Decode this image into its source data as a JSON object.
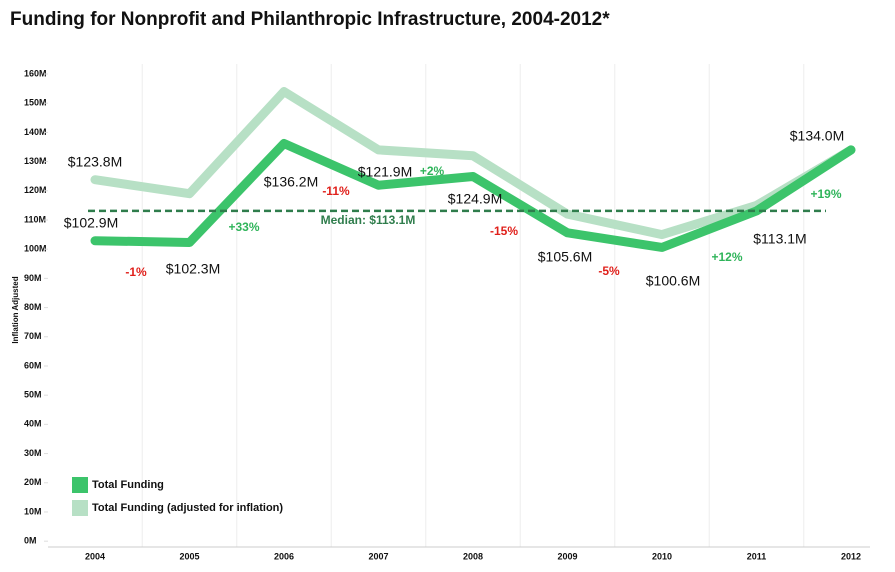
{
  "chart_data": {
    "type": "line",
    "title": "Funding for Nonprofit and Philanthropic Infrastructure, 2004-2012*",
    "y_label": "Inflation Adjusted",
    "categories": [
      "2004",
      "2005",
      "2006",
      "2007",
      "2008",
      "2009",
      "2010",
      "2011",
      "2012"
    ],
    "series": [
      {
        "name": "Total Funding",
        "color": "#3cc46b",
        "values": [
          102.9,
          102.3,
          136.2,
          121.9,
          124.9,
          105.6,
          100.6,
          113.1,
          134.0
        ],
        "value_labels": [
          "$102.9M",
          "$102.3M",
          "$136.2M",
          "$121.9M",
          "$124.9M",
          "$105.6M",
          "$100.6M",
          "$113.1M",
          "$134.0M"
        ]
      },
      {
        "name": "Total Funding (adjusted for inflation)",
        "color": "#b7e0c5",
        "values": [
          123.8,
          119,
          154,
          134,
          132,
          112,
          105,
          115,
          134
        ],
        "value_labels": [
          "$123.8M",
          null,
          null,
          null,
          null,
          null,
          null,
          null,
          null
        ]
      }
    ],
    "change_labels": [
      "-1%",
      "+33%",
      "-11%",
      "+2%",
      "-15%",
      "-5%",
      "+12%",
      "+19%"
    ],
    "median": {
      "value": 113.1,
      "label": "Median: $113.1M",
      "color": "#2f7d4c"
    },
    "ylim": [
      -2,
      160
    ],
    "yticks": [
      {
        "value": 0,
        "label": "0M"
      },
      {
        "value": 10,
        "label": "10M"
      },
      {
        "value": 20,
        "label": "20M"
      },
      {
        "value": 30,
        "label": "30M"
      },
      {
        "value": 40,
        "label": "40M"
      },
      {
        "value": 50,
        "label": "50M"
      },
      {
        "value": 60,
        "label": "60M"
      },
      {
        "value": 70,
        "label": "70M"
      },
      {
        "value": 80,
        "label": "80M"
      },
      {
        "value": 90,
        "label": "90M"
      },
      {
        "value": 100,
        "label": "100M"
      },
      {
        "value": 110,
        "label": "110M"
      },
      {
        "value": 120,
        "label": "120M"
      },
      {
        "value": 130,
        "label": "130M"
      },
      {
        "value": 140,
        "label": "140M"
      },
      {
        "value": 150,
        "label": "150M"
      },
      {
        "value": 160,
        "label": "160M"
      }
    ],
    "legend": "lower left"
  }
}
